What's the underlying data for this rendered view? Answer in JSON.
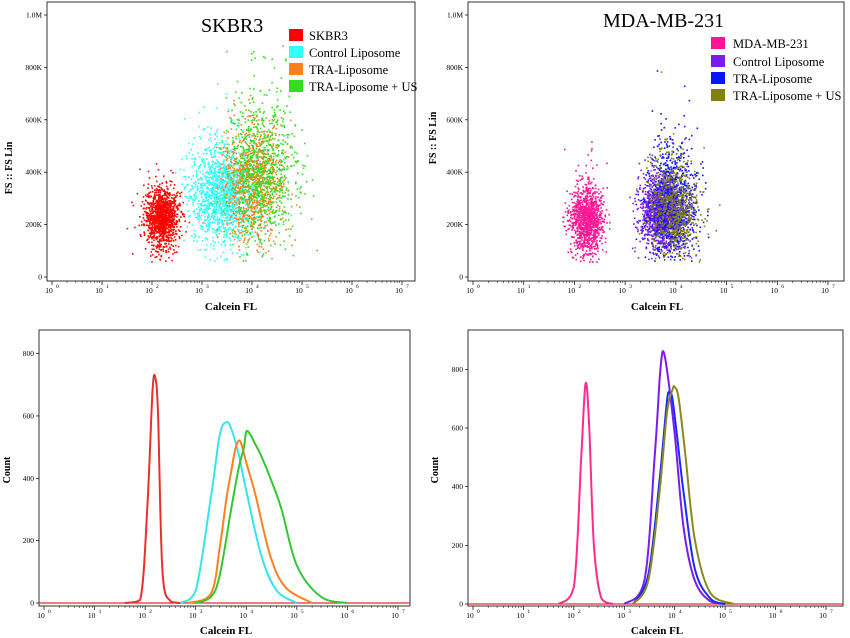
{
  "figure": {
    "panels": {
      "tl": {
        "title": "SKBR3",
        "xlabel": "Calcein FL",
        "ylabel": "FS :: FS Lin",
        "xticks": [
          "10",
          "10",
          "10",
          "10",
          "10",
          "10",
          "10",
          "10"
        ],
        "xtick_exps": [
          "0",
          "1",
          "2",
          "3",
          "4",
          "5",
          "6",
          "7"
        ],
        "yticks": [
          "0",
          "200K",
          "400K",
          "600K",
          "800K",
          "1.0M"
        ],
        "legend": [
          {
            "label": "SKBR3",
            "color": "#ff0000"
          },
          {
            "label": "Control Liposome",
            "color": "#33ffff"
          },
          {
            "label": "TRA-Liposome",
            "color": "#ff7f1a"
          },
          {
            "label": "TRA-Liposome + US",
            "color": "#33dd22"
          }
        ]
      },
      "tr": {
        "title": "MDA-MB-231",
        "xlabel": "Calcein FL",
        "ylabel": "FS :: FS Lin",
        "xticks": [
          "10",
          "10",
          "10",
          "10",
          "10",
          "10",
          "10",
          "10"
        ],
        "xtick_exps": [
          "0",
          "1",
          "2",
          "3",
          "4",
          "5",
          "6",
          "7"
        ],
        "yticks": [
          "0",
          "200K",
          "400K",
          "600K",
          "800K",
          "1.0M"
        ],
        "legend": [
          {
            "label": "MDA-MB-231",
            "color": "#ff1493"
          },
          {
            "label": "Control Liposome",
            "color": "#7a1cf0"
          },
          {
            "label": "TRA-Liposome",
            "color": "#0a14ff"
          },
          {
            "label": "TRA-Liposome + US",
            "color": "#808010"
          }
        ]
      },
      "bl": {
        "xlabel": "Calcein FL",
        "ylabel": "Count",
        "xticks": [
          "10",
          "10",
          "10",
          "10",
          "10",
          "10",
          "10",
          "10"
        ],
        "xtick_exps": [
          "0",
          "1",
          "2",
          "3",
          "4",
          "5",
          "6",
          "7"
        ],
        "yticks": [
          "0",
          "200",
          "400",
          "600",
          "800"
        ]
      },
      "br": {
        "xlabel": "Calcein FL",
        "ylabel": "Count",
        "xticks": [
          "10",
          "10",
          "10",
          "10",
          "10",
          "10",
          "10",
          "10"
        ],
        "xtick_exps": [
          "0",
          "1",
          "2",
          "3",
          "4",
          "5",
          "6",
          "7"
        ],
        "yticks": [
          "0",
          "200",
          "400",
          "600",
          "800"
        ]
      }
    }
  },
  "chart_data": [
    {
      "type": "scatter",
      "title": "SKBR3",
      "xlabel": "Calcein FL",
      "ylabel": "FS :: FS Lin",
      "xscale": "log",
      "xlim": [
        1,
        10000000
      ],
      "ylim": [
        0,
        1000000
      ],
      "legend_position": "top-right",
      "series": [
        {
          "name": "SKBR3",
          "color": "#ff0000",
          "center": [
            150,
            230000
          ],
          "spread": [
            0.17,
            50000
          ],
          "n": 1200
        },
        {
          "name": "Control Liposome",
          "color": "#33ffff",
          "center": [
            2500,
            320000
          ],
          "spread": [
            0.32,
            90000
          ],
          "n": 1500
        },
        {
          "name": "TRA-Liposome",
          "color": "#ff7f1a",
          "center": [
            10000,
            360000
          ],
          "spread": [
            0.3,
            100000
          ],
          "n": 900
        },
        {
          "name": "TRA-Liposome + US",
          "color": "#33dd22",
          "center": [
            15000,
            400000
          ],
          "spread": [
            0.35,
            130000
          ],
          "n": 900
        }
      ]
    },
    {
      "type": "scatter",
      "title": "MDA-MB-231",
      "xlabel": "Calcein FL",
      "ylabel": "FS :: FS Lin",
      "xscale": "log",
      "xlim": [
        1,
        10000000
      ],
      "ylim": [
        0,
        1000000
      ],
      "legend_position": "top-right",
      "series": [
        {
          "name": "MDA-MB-231",
          "color": "#ff1493",
          "center": [
            170,
            220000
          ],
          "spread": [
            0.16,
            60000
          ],
          "n": 1100
        },
        {
          "name": "Control Liposome",
          "color": "#7a1cf0",
          "center": [
            5500,
            250000
          ],
          "spread": [
            0.22,
            65000
          ],
          "n": 1500
        },
        {
          "name": "TRA-Liposome",
          "color": "#0a14ff",
          "center": [
            8000,
            280000
          ],
          "spread": [
            0.25,
            100000
          ],
          "n": 900
        },
        {
          "name": "TRA-Liposome + US",
          "color": "#808010",
          "center": [
            9000,
            270000
          ],
          "spread": [
            0.25,
            90000
          ],
          "n": 700
        }
      ]
    },
    {
      "type": "line",
      "xlabel": "Calcein FL",
      "ylabel": "Count",
      "xscale": "log",
      "xlim": [
        1,
        10000000
      ],
      "ylim": [
        0,
        850
      ],
      "series": [
        {
          "name": "SKBR3",
          "color": "#e8302c",
          "x": [
            40,
            80,
            110,
            140,
            160,
            180,
            220,
            320,
            500
          ],
          "y": [
            0,
            10,
            300,
            680,
            720,
            600,
            100,
            5,
            0
          ]
        },
        {
          "name": "Control Liposome",
          "color": "#35e5ee",
          "x": [
            500,
            1000,
            2000,
            3000,
            4000,
            5000,
            7000,
            10000,
            20000,
            40000,
            100000
          ],
          "y": [
            0,
            40,
            340,
            540,
            580,
            560,
            480,
            360,
            150,
            40,
            0
          ]
        },
        {
          "name": "TRA-Liposome",
          "color": "#ff8020",
          "x": [
            700,
            2000,
            3000,
            4000,
            5000,
            6000,
            7000,
            8000,
            10000,
            15000,
            30000,
            60000,
            200000
          ],
          "y": [
            0,
            30,
            180,
            330,
            420,
            490,
            520,
            510,
            450,
            350,
            150,
            50,
            0
          ]
        },
        {
          "name": "TRA-Liposome + US",
          "color": "#32c832",
          "x": [
            1000,
            2000,
            3000,
            5000,
            7000,
            9000,
            10000,
            12000,
            15000,
            20000,
            30000,
            50000,
            100000,
            300000,
            1000000
          ],
          "y": [
            0,
            20,
            90,
            300,
            430,
            500,
            550,
            540,
            510,
            470,
            400,
            300,
            120,
            20,
            0
          ]
        }
      ]
    },
    {
      "type": "line",
      "xlabel": "Calcein FL",
      "ylabel": "Count",
      "xscale": "log",
      "xlim": [
        1,
        10000000
      ],
      "ylim": [
        0,
        900
      ],
      "series": [
        {
          "name": "MDA-MB-231",
          "color": "#ff2b8c",
          "x": [
            50,
            100,
            140,
            170,
            200,
            250,
            350,
            600
          ],
          "y": [
            0,
            60,
            500,
            750,
            620,
            200,
            20,
            0
          ]
        },
        {
          "name": "Control Liposome",
          "color": "#7a1cf0",
          "x": [
            1000,
            2500,
            4000,
            5000,
            5500,
            6000,
            7000,
            10000,
            15000,
            25000,
            50000,
            100000
          ],
          "y": [
            0,
            80,
            500,
            760,
            840,
            860,
            800,
            580,
            260,
            80,
            10,
            0
          ]
        },
        {
          "name": "TRA-Liposome",
          "color": "#1a2aff",
          "x": [
            1500,
            3000,
            5000,
            7000,
            8000,
            9000,
            11000,
            15000,
            25000,
            50000,
            100000
          ],
          "y": [
            0,
            100,
            420,
            690,
            720,
            700,
            580,
            380,
            120,
            20,
            0
          ]
        },
        {
          "name": "TRA-Liposome + US",
          "color": "#8b8a20",
          "x": [
            1500,
            3000,
            5000,
            7000,
            9000,
            10000,
            12000,
            16000,
            25000,
            50000,
            150000
          ],
          "y": [
            0,
            80,
            380,
            650,
            730,
            740,
            700,
            520,
            220,
            40,
            0
          ]
        }
      ]
    }
  ]
}
